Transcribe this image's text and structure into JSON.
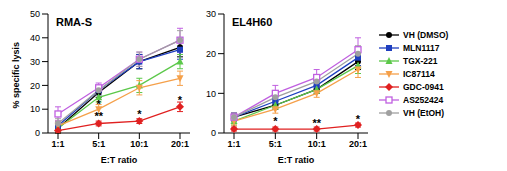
{
  "chart_data": [
    {
      "type": "line",
      "title": "RMA-S",
      "x_label": "E:T ratio",
      "y_label": "% specific lysis",
      "categories": [
        "1:1",
        "5:1",
        "10:1",
        "20:1"
      ],
      "ylim": [
        0,
        50
      ],
      "yticks": [
        0,
        10,
        20,
        30,
        40,
        50
      ],
      "series": [
        {
          "name": "VH (DMSO)",
          "color": "#000000",
          "marker": "circle",
          "values": [
            2,
            17,
            30,
            36
          ],
          "errors": [
            2,
            2,
            3,
            4
          ]
        },
        {
          "name": "MLN1117",
          "color": "#1f3fbf",
          "marker": "square",
          "values": [
            3,
            18,
            30,
            35
          ],
          "errors": [
            2,
            2,
            3,
            4
          ]
        },
        {
          "name": "TGX-221",
          "color": "#5cc84a",
          "marker": "triangle",
          "values": [
            2,
            15,
            20,
            30
          ],
          "errors": [
            2,
            2,
            3,
            3
          ]
        },
        {
          "name": "IC87114",
          "color": "#f5a04a",
          "marker": "triangle-down",
          "values": [
            3,
            10,
            19,
            23
          ],
          "errors": [
            2,
            2,
            3,
            3
          ]
        },
        {
          "name": "GDC-0941",
          "color": "#e02020",
          "marker": "diamond",
          "values": [
            1,
            4,
            5,
            11
          ],
          "errors": [
            1,
            1,
            1,
            2
          ]
        },
        {
          "name": "AS252424",
          "color": "#c060e0",
          "marker": "square-open",
          "values": [
            8,
            19,
            31,
            39
          ],
          "errors": [
            3,
            2,
            3,
            5
          ]
        },
        {
          "name": "VH (EtOH)",
          "color": "#a0a0a0",
          "marker": "circle",
          "values": [
            4,
            18,
            31,
            39
          ],
          "errors": [
            2,
            2,
            3,
            4
          ]
        }
      ],
      "annotations": [
        {
          "text": "*",
          "x": "5:1",
          "y": 12
        },
        {
          "text": "**",
          "x": "5:1",
          "y": 7
        },
        {
          "text": "*",
          "x": "10:1",
          "y": 8
        },
        {
          "text": "*",
          "x": "20:1",
          "y": 14
        }
      ]
    },
    {
      "type": "line",
      "title": "EL4H60",
      "x_label": "E:T ratio",
      "legend": "right",
      "categories": [
        "1:1",
        "5:1",
        "10:1",
        "20:1"
      ],
      "ylim": [
        0,
        30
      ],
      "yticks": [
        0,
        10,
        20,
        30
      ],
      "series": [
        {
          "name": "VH (DMSO)",
          "color": "#000000",
          "marker": "circle",
          "values": [
            4,
            7,
            11,
            18
          ],
          "errors": [
            1,
            1,
            1,
            2
          ]
        },
        {
          "name": "MLN1117",
          "color": "#1f3fbf",
          "marker": "square",
          "values": [
            4,
            8,
            12,
            19
          ],
          "errors": [
            1,
            1,
            1,
            2
          ]
        },
        {
          "name": "TGX-221",
          "color": "#5cc84a",
          "marker": "triangle",
          "values": [
            3,
            7,
            11,
            17
          ],
          "errors": [
            1,
            1,
            1,
            2
          ]
        },
        {
          "name": "IC87114",
          "color": "#f5a04a",
          "marker": "triangle-down",
          "values": [
            3,
            6,
            10,
            16
          ],
          "errors": [
            1,
            1,
            1,
            2
          ]
        },
        {
          "name": "GDC-0941",
          "color": "#e02020",
          "marker": "diamond",
          "values": [
            1,
            1,
            1,
            2
          ],
          "errors": [
            0.5,
            0.5,
            0.5,
            0.5
          ]
        },
        {
          "name": "AS252424",
          "color": "#c060e0",
          "marker": "square-open",
          "values": [
            4,
            10,
            14,
            21
          ],
          "errors": [
            1,
            2,
            2,
            3
          ]
        },
        {
          "name": "VH (EtOH)",
          "color": "#a0a0a0",
          "marker": "circle",
          "values": [
            4,
            9,
            13,
            20
          ],
          "errors": [
            1,
            1,
            1,
            2
          ]
        }
      ],
      "annotations": [
        {
          "text": "*",
          "x": "5:1",
          "y": 3
        },
        {
          "text": "**",
          "x": "10:1",
          "y": 2.6
        },
        {
          "text": "*",
          "x": "20:1",
          "y": 3.6
        }
      ]
    }
  ]
}
